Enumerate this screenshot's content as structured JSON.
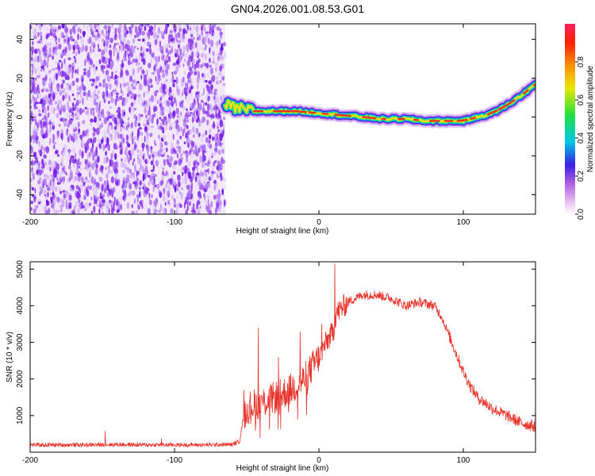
{
  "title": "GN04.2026.001.08.53.G01",
  "chart_data": [
    {
      "type": "heatmap",
      "name": "spectrogram",
      "title": "GN04.2026.001.08.53.G01",
      "xlabel": "Height of straight line (km)",
      "ylabel": "Frequency (Hz)",
      "xlim": [
        -200,
        150
      ],
      "ylim": [
        -50,
        48
      ],
      "xticks": [
        -200,
        -100,
        0,
        100
      ],
      "yticks": [
        -40,
        -20,
        0,
        20,
        40
      ],
      "noise_region_km": [
        -200,
        -65
      ],
      "ridge": {
        "x_km": [
          -65,
          -55,
          -45,
          -30,
          -15,
          0,
          15,
          30,
          45,
          60,
          75,
          90,
          100,
          110,
          120,
          130,
          140,
          150
        ],
        "freq_hz": [
          6,
          4,
          3,
          3,
          3,
          2,
          1,
          0,
          -1,
          -1,
          -2,
          -2,
          -2,
          0,
          2,
          6,
          11,
          17
        ]
      },
      "colorbar": {
        "label": "Normalized spectral amplitude",
        "ticks": [
          0.0,
          0.2,
          0.4,
          0.6,
          0.8
        ],
        "range": [
          0,
          1
        ]
      }
    },
    {
      "type": "line",
      "name": "snr",
      "xlabel": "Height of straight line (km)",
      "ylabel": "SNR (10 * v/v)",
      "xlim": [
        -200,
        150
      ],
      "ylim": [
        0,
        5200
      ],
      "xticks": [
        -200,
        -100,
        0,
        100
      ],
      "yticks": [
        1000,
        2000,
        3000,
        4000,
        5000
      ],
      "color": "#e8332a",
      "series": [
        {
          "name": "SNR",
          "x": [
            -200,
            -180,
            -160,
            -140,
            -120,
            -100,
            -80,
            -60,
            -55,
            -52,
            -50,
            -45,
            -40,
            -30,
            -20,
            -10,
            0,
            5,
            10,
            12,
            15,
            20,
            25,
            30,
            40,
            50,
            60,
            70,
            80,
            85,
            90,
            95,
            100,
            105,
            110,
            120,
            130,
            140,
            150
          ],
          "y": [
            200,
            200,
            200,
            210,
            200,
            200,
            200,
            210,
            300,
            1000,
            1200,
            1300,
            1350,
            1500,
            1700,
            2000,
            2600,
            3000,
            3300,
            3800,
            3900,
            4100,
            4200,
            4300,
            4300,
            4200,
            4000,
            4100,
            4000,
            3700,
            3200,
            2700,
            2200,
            1800,
            1500,
            1200,
            1000,
            800,
            700
          ]
        }
      ]
    }
  ]
}
